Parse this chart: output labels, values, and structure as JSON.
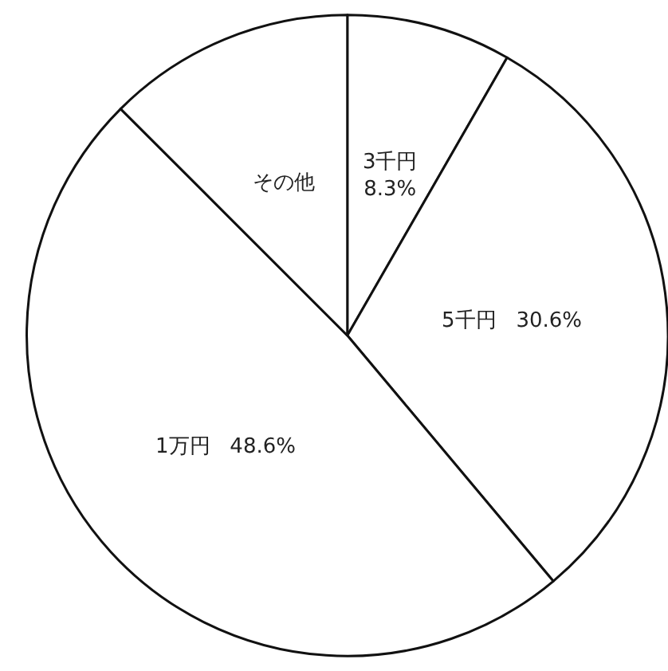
{
  "chart_data": {
    "type": "pie",
    "categories": [
      "3千円",
      "5千円",
      "1万円",
      "その他"
    ],
    "values": [
      8.3,
      30.6,
      48.6,
      12.5
    ],
    "colors": [
      "#ffffff",
      "#ffffff",
      "#ffffff",
      "#ffffff"
    ],
    "value_labels": [
      "8.3%",
      "30.6%",
      "48.6%",
      null
    ]
  }
}
